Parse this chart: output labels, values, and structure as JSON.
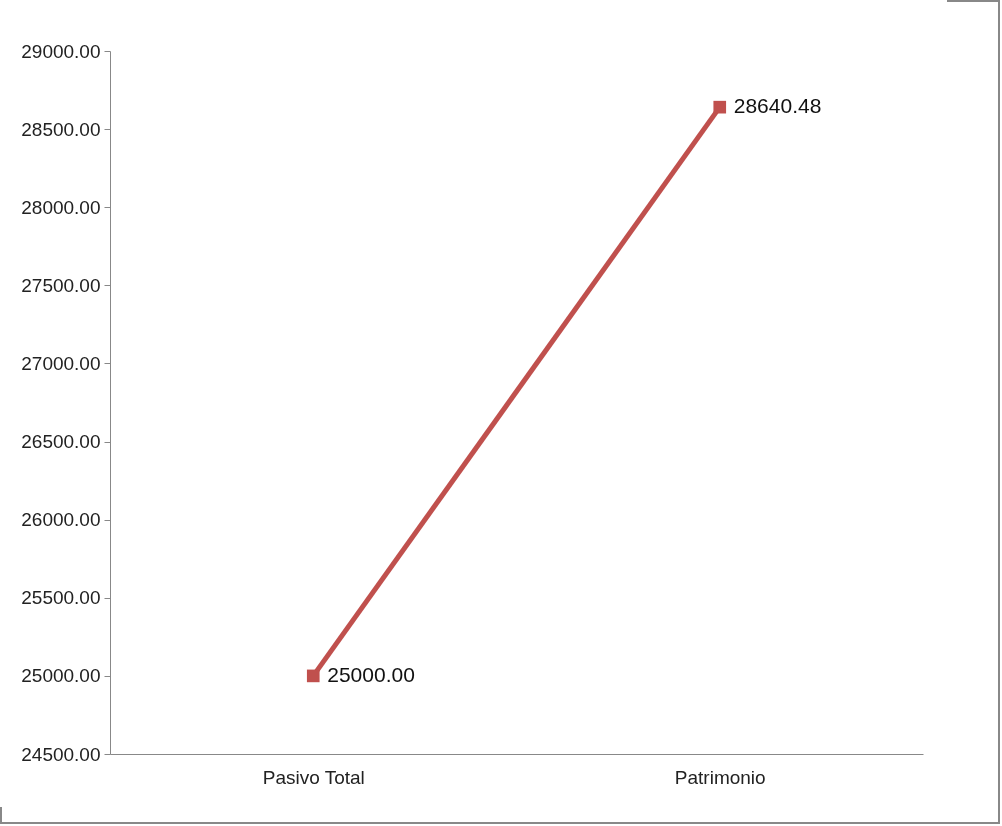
{
  "chart_data": {
    "type": "line",
    "categories": [
      "Pasivo Total",
      "Patrimonio"
    ],
    "series": [
      {
        "color": "#c0504d",
        "values": [
          25000,
          28640.48
        ],
        "value_labels": [
          "25000.00",
          "28640.48"
        ]
      }
    ],
    "ylim": [
      24500,
      29000
    ],
    "yticks": [
      {
        "value": 24500,
        "label": "24500.00"
      },
      {
        "value": 25000,
        "label": "25000.00"
      },
      {
        "value": 25500,
        "label": "25500.00"
      },
      {
        "value": 26000,
        "label": "26000.00"
      },
      {
        "value": 26500,
        "label": "26500.00"
      },
      {
        "value": 27000,
        "label": "27000.00"
      },
      {
        "value": 27500,
        "label": "27500.00"
      },
      {
        "value": 28000,
        "label": "28000.00"
      },
      {
        "value": 28500,
        "label": "28500.00"
      },
      {
        "value": 29000,
        "label": "29000.00"
      }
    ],
    "grid": false,
    "legend": false,
    "marker": "square",
    "line_style": "solid"
  }
}
